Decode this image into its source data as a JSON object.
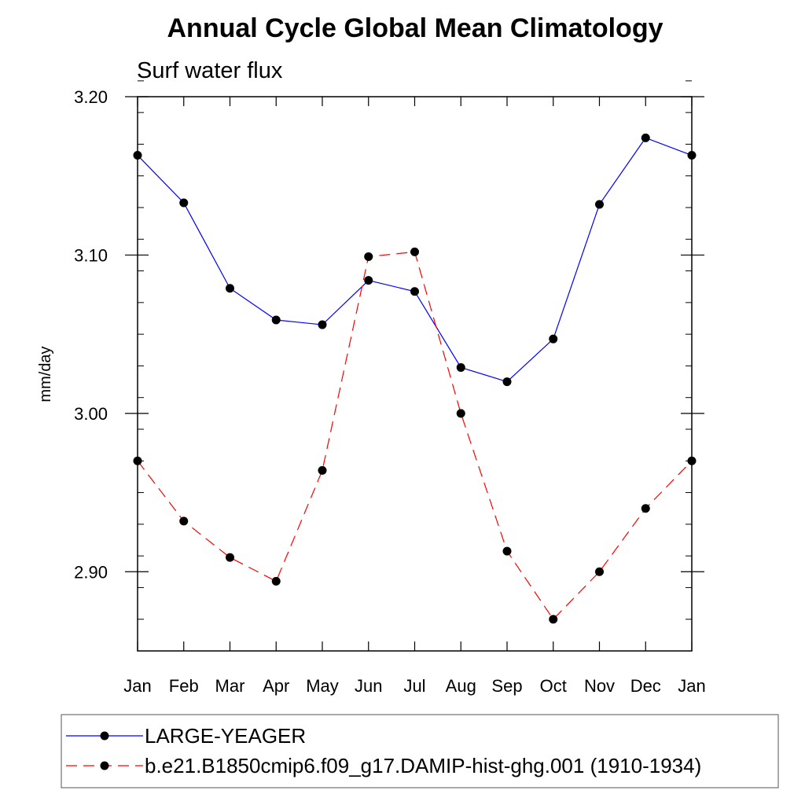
{
  "chart_data": {
    "type": "line",
    "title": "Annual Cycle Global Mean Climatology",
    "subtitle": "Surf water flux",
    "xlabel": "",
    "ylabel": "mm/day",
    "categories": [
      "Jan",
      "Feb",
      "Mar",
      "Apr",
      "May",
      "Jun",
      "Jul",
      "Aug",
      "Sep",
      "Oct",
      "Nov",
      "Dec",
      "Jan"
    ],
    "ylim": [
      2.85,
      3.2
    ],
    "yticks": [
      2.9,
      3.0,
      3.1,
      3.2
    ],
    "ytick_labels": [
      "2.90",
      "3.00",
      "3.10",
      "3.20"
    ],
    "yminor_step": 0.02,
    "grid": false,
    "legend_position": "bottom",
    "series": [
      {
        "name": "LARGE-YEAGER",
        "color": "#0000ff",
        "dash": "solid",
        "marker": "filled-circle",
        "values": [
          3.163,
          3.133,
          3.079,
          3.059,
          3.056,
          3.084,
          3.077,
          3.029,
          3.02,
          3.047,
          3.132,
          3.174,
          3.163
        ]
      },
      {
        "name": "b.e21.B1850cmip6.f09_g17.DAMIP-hist-ghg.001 (1910-1934)",
        "color": "#ff0000",
        "dash": "dashed",
        "marker": "filled-circle",
        "values": [
          2.97,
          2.932,
          2.909,
          2.894,
          2.964,
          3.099,
          3.102,
          3.0,
          2.913,
          2.87,
          2.9,
          2.94,
          2.97
        ]
      }
    ]
  }
}
